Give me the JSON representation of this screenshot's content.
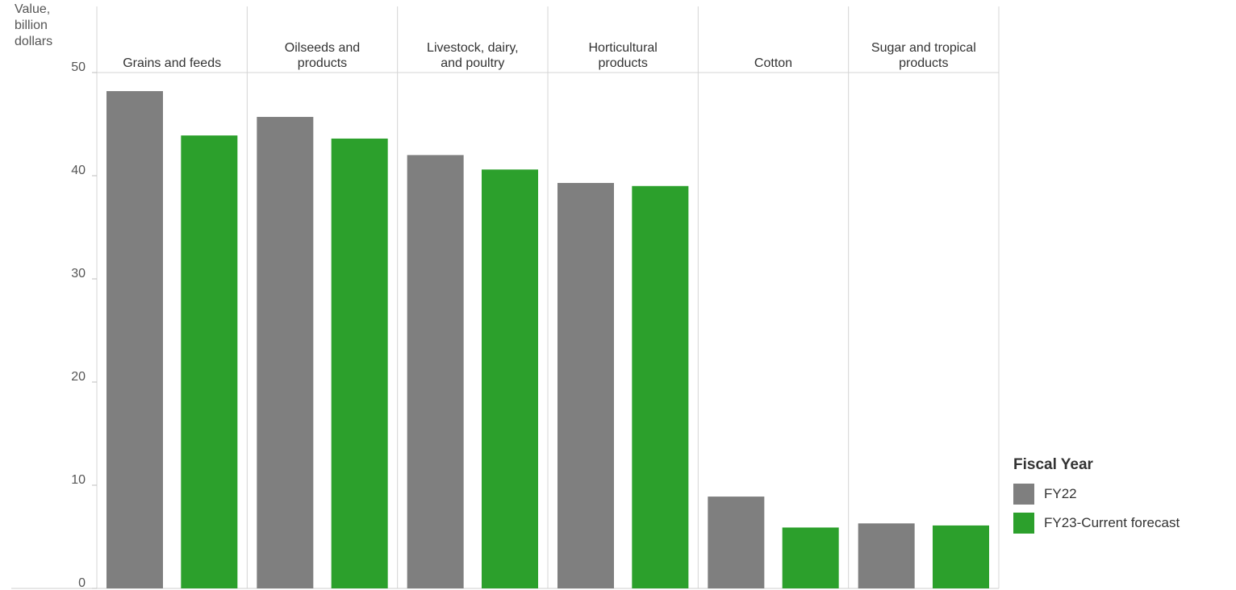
{
  "chart_data": {
    "type": "bar",
    "ylabel": [
      "Value,",
      "billion",
      "dollars"
    ],
    "ylim": [
      0,
      50
    ],
    "yticks": [
      0,
      10,
      20,
      30,
      40,
      50
    ],
    "categories": [
      "Grains and feeds",
      "Oilseeds and products",
      "Livestock, dairy, and poultry",
      "Horticultural products",
      "Cotton",
      "Sugar and tropical products"
    ],
    "category_lines": [
      [
        "Grains and feeds"
      ],
      [
        "Oilseeds and",
        "products"
      ],
      [
        "Livestock, dairy,",
        "and poultry"
      ],
      [
        "Horticultural",
        "products"
      ],
      [
        "Cotton"
      ],
      [
        "Sugar and tropical",
        "products"
      ]
    ],
    "series": [
      {
        "name": "FY22",
        "color": "#7f7f7f",
        "values": [
          48.2,
          45.7,
          42.0,
          39.3,
          8.9,
          6.3
        ]
      },
      {
        "name": "FY23-Current forecast",
        "color": "#2ca02c",
        "values": [
          43.9,
          43.6,
          40.6,
          39.0,
          5.9,
          6.1
        ]
      }
    ],
    "grid": "vertical separators",
    "legend": {
      "title": "Fiscal Year",
      "position": "right-bottom"
    }
  }
}
